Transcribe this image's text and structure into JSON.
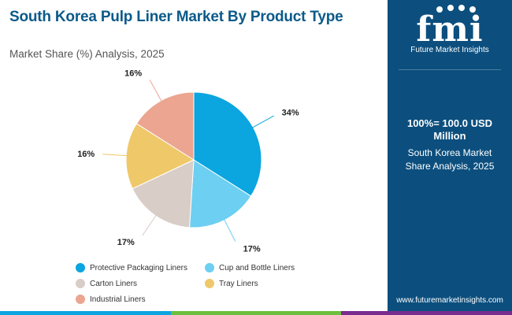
{
  "header": {
    "title": "South Korea Pulp Liner Market By Product Type",
    "subtitle": "Market Share (%) Analysis, 2025"
  },
  "chart_data": {
    "type": "pie",
    "title": "South Korea Pulp Liner Market By Product Type",
    "subtitle": "Market Share (%) Analysis, 2025",
    "categories": [
      "Protective Packaging Liners",
      "Cup and Bottle Liners",
      "Carton Liners",
      "Tray Liners",
      "Industrial Liners"
    ],
    "values": [
      34,
      17,
      17,
      16,
      16
    ],
    "labels": [
      "34%",
      "17%",
      "17%",
      "16%",
      "16%"
    ],
    "colors": [
      "#0ba5e0",
      "#6dcff1",
      "#d9cdc8",
      "#efc86a",
      "#eba590"
    ],
    "start_angle_deg": 0,
    "direction": "clockwise",
    "legend_position": "bottom"
  },
  "sidebar": {
    "logo_text": "fmi",
    "logo_subtitle": "Future Market Insights",
    "total_label": "100%= 100.0 USD Million",
    "share_label": "South Korea Market Share Analysis, 2025",
    "website": "www.futuremarketinsights.com"
  },
  "bottom_bar_colors": [
    "#0ba5e0",
    "#6dbf3e",
    "#7a2b8f"
  ]
}
